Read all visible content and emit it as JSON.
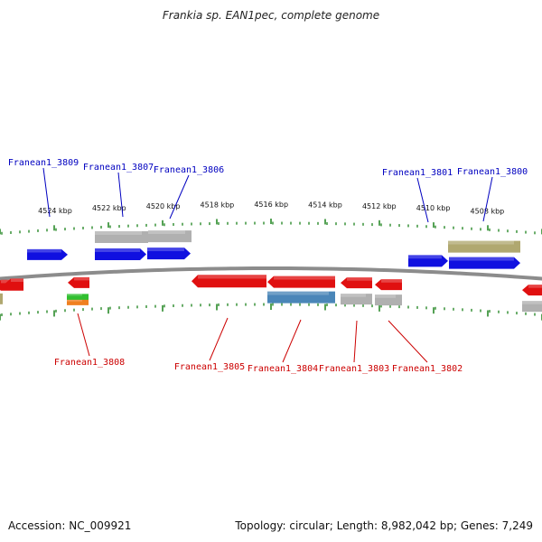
{
  "header": {
    "title": "Frankia sp. EAN1pec, complete genome"
  },
  "footer": {
    "accession": "Accession: NC_009921",
    "stats": "Topology: circular; Length: 8,982,042 bp; Genes: 7,249"
  },
  "colors": {
    "forward_cds": "#1010e0",
    "reverse_cds": "#e01010",
    "pseudo": "#b0b0b0",
    "rna_olive": "#b0a870",
    "rna_steel": "#4a86b8",
    "rna_green": "#30c030",
    "rna_orange": "#f08020",
    "tick": "#2a8a2a",
    "backbone": "#8c8c8c",
    "forward_label": "#0000c0",
    "reverse_label": "#cc0000"
  },
  "scale": {
    "unit": "kbp",
    "ticks": [
      {
        "kbp": 4524,
        "label": "4524 kbp"
      },
      {
        "kbp": 4522,
        "label": "4522 kbp"
      },
      {
        "kbp": 4520,
        "label": "4520 kbp"
      },
      {
        "kbp": 4518,
        "label": "4518 kbp"
      },
      {
        "kbp": 4516,
        "label": "4516 kbp"
      },
      {
        "kbp": 4514,
        "label": "4514 kbp"
      },
      {
        "kbp": 4512,
        "label": "4512 kbp"
      },
      {
        "kbp": 4510,
        "label": "4510 kbp"
      },
      {
        "kbp": 4508,
        "label": "4508 kbp"
      }
    ]
  },
  "genes": {
    "forward": [
      {
        "label": "Franean1_3809"
      },
      {
        "label": "Franean1_3807"
      },
      {
        "label": "Franean1_3806"
      },
      {
        "label": "Franean1_3801"
      },
      {
        "label": "Franean1_3800"
      }
    ],
    "reverse": [
      {
        "label": "Franean1_3808"
      },
      {
        "label": "Franean1_3805"
      },
      {
        "label": "Franean1_3804"
      },
      {
        "label": "Franean1_3803"
      },
      {
        "label": "Franean1_3802"
      }
    ]
  }
}
